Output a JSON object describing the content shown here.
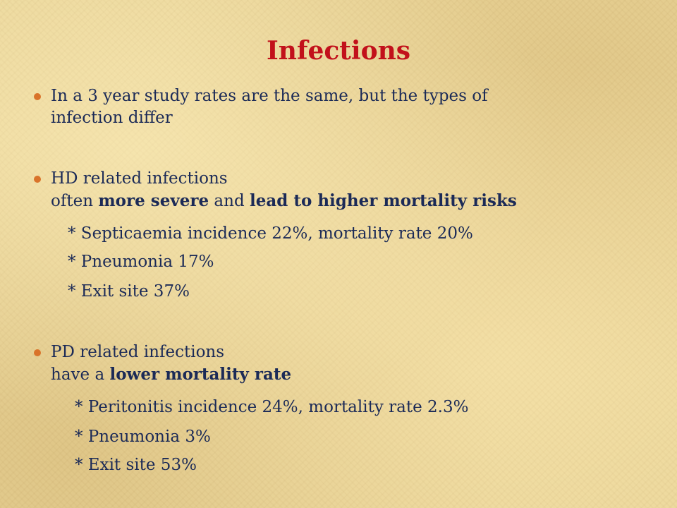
{
  "slide": {
    "title": "Infections",
    "bullet_color": "#d9732a",
    "title_color": "#c2111b",
    "text_color": "#1b2a57",
    "bullets": [
      {
        "lines": [
          "In a 3 year study rates are the same, but the types of",
          "infection  differ"
        ]
      },
      {
        "line1": "HD related infections",
        "line2_prefix": "often ",
        "line2_bold1": "more severe",
        "line2_mid": " and ",
        "line2_bold2": "lead to higher mortality risks",
        "subitems": [
          "*  Septicaemia incidence 22%, mortality rate 20%",
          "*  Pneumonia 17%",
          "*  Exit site 37%"
        ]
      },
      {
        "line1": "PD related infections",
        "line2_prefix": "have a ",
        "line2_bold": "lower mortality rate",
        "subitems": [
          "*  Peritonitis incidence 24%, mortality rate 2.3%",
          "*  Pneumonia 3%",
          "*  Exit site 53%"
        ]
      }
    ]
  }
}
